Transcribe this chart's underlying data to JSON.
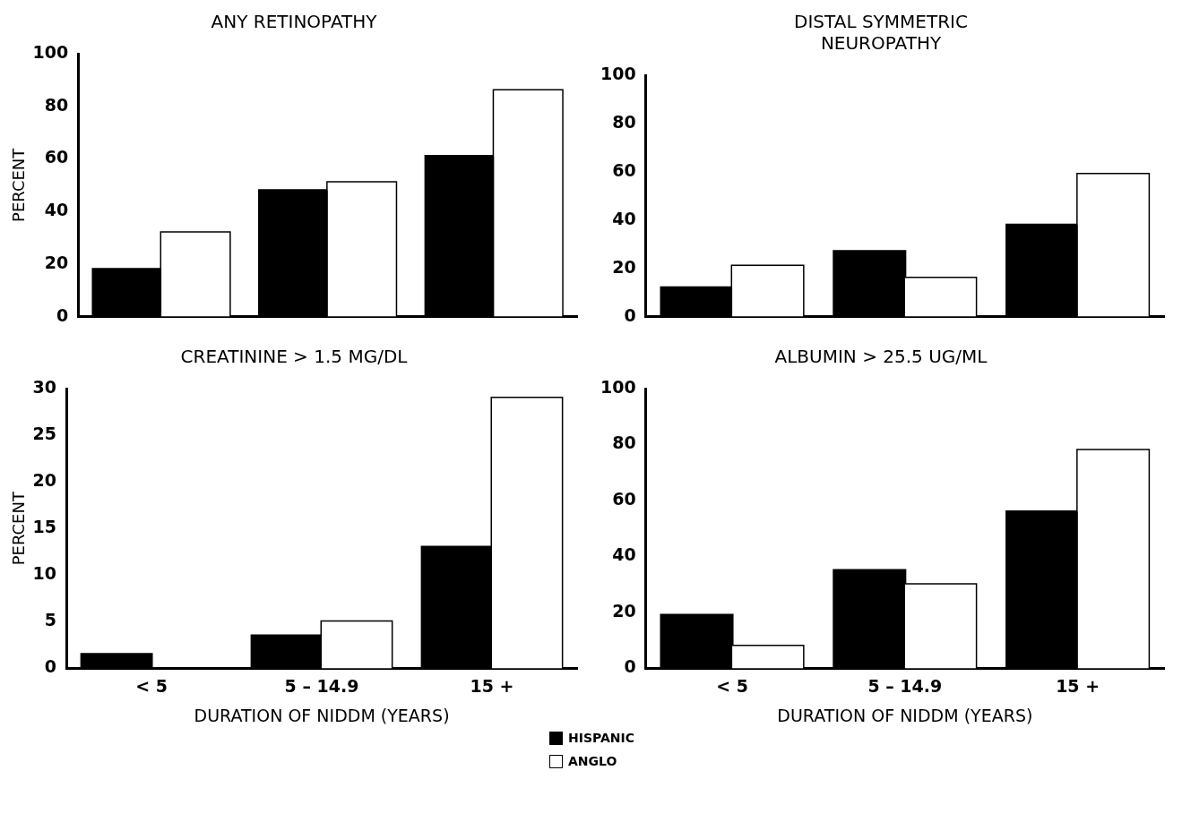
{
  "chart_data": [
    {
      "type": "bar",
      "title": "ANY RETINOPATHY",
      "ylabel": "PERCENT",
      "categories": [
        "< 5",
        "5 – 14.9",
        "15 +"
      ],
      "series": [
        {
          "name": "HISPANIC",
          "color": "#000000",
          "values": [
            18,
            48,
            61
          ]
        },
        {
          "name": "ANGLO",
          "color": "#ffffff",
          "values": [
            32,
            51,
            86
          ]
        }
      ],
      "ylim": [
        0,
        100
      ],
      "yticks": [
        0,
        20,
        40,
        60,
        80,
        100
      ],
      "tick_labels": "y",
      "legend": "bottom"
    },
    {
      "type": "bar",
      "title": "DISTAL SYMMETRIC\nNEUROPATHY",
      "categories": [
        "< 5",
        "5 – 14.9",
        "15 +"
      ],
      "series": [
        {
          "name": "HISPANIC",
          "color": "#000000",
          "values": [
            12,
            27,
            38
          ]
        },
        {
          "name": "ANGLO",
          "color": "#ffffff",
          "values": [
            21,
            16,
            59
          ]
        }
      ],
      "ylim": [
        0,
        100
      ],
      "yticks": [
        0,
        20,
        40,
        60,
        80,
        100
      ],
      "tick_labels": "y",
      "legend": "bottom"
    },
    {
      "type": "bar",
      "title": "CREATININE > 1.5 MG/DL",
      "ylabel": "PERCENT",
      "xlabel": "DURATION OF NIDDM (YEARS)",
      "categories": [
        "< 5",
        "5 – 14.9",
        "15 +"
      ],
      "series": [
        {
          "name": "HISPANIC",
          "color": "#000000",
          "values": [
            1.5,
            3.5,
            13
          ]
        },
        {
          "name": "ANGLO",
          "color": "#ffffff",
          "values": [
            0,
            5,
            29
          ]
        }
      ],
      "ylim": [
        0,
        30
      ],
      "yticks": [
        0,
        5,
        10,
        15,
        20,
        25,
        30
      ],
      "legend": "bottom"
    },
    {
      "type": "bar",
      "title": "ALBUMIN > 25.5 UG/ML",
      "xlabel": "DURATION OF NIDDM (YEARS)",
      "categories": [
        "< 5",
        "5 – 14.9",
        "15 +"
      ],
      "series": [
        {
          "name": "HISPANIC",
          "color": "#000000",
          "values": [
            19,
            35,
            56
          ]
        },
        {
          "name": "ANGLO",
          "color": "#ffffff",
          "values": [
            8,
            30,
            78
          ]
        }
      ],
      "ylim": [
        0,
        100
      ],
      "yticks": [
        0,
        20,
        40,
        60,
        80,
        100
      ],
      "legend": "bottom"
    }
  ]
}
